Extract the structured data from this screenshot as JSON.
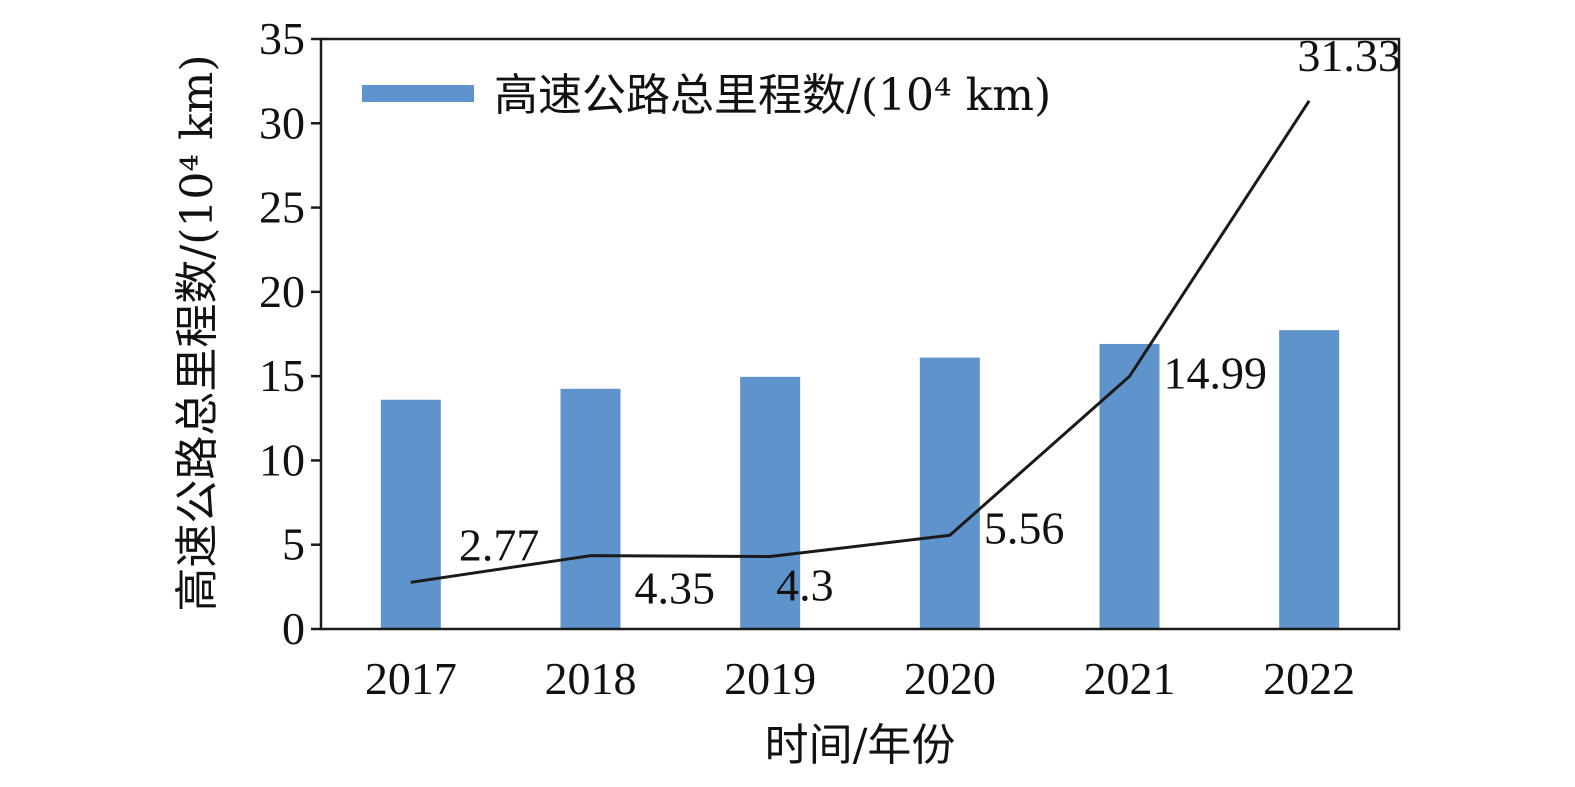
{
  "chart_data": {
    "type": "bar",
    "categories": [
      "2017",
      "2018",
      "2019",
      "2020",
      "2021",
      "2022"
    ],
    "series": [
      {
        "name": "高速公路总里程数/(10⁴ km)",
        "type": "bar",
        "values": [
          13.6,
          14.25,
          14.96,
          16.1,
          16.91,
          17.73
        ],
        "color": "#5f93cb"
      },
      {
        "type": "line",
        "values": [
          2.77,
          4.35,
          4.3,
          5.56,
          14.99,
          31.33
        ],
        "labels": [
          "2.77",
          "4.35",
          "4.3",
          "5.56",
          "14.99",
          "31.33"
        ],
        "color": "#1a1a1a"
      }
    ],
    "xlabel": "时间/年份",
    "ylabel": "高速公路总里程数/(10⁴ km)",
    "ylim": [
      0,
      35
    ],
    "yticks": [
      "0",
      "5",
      "10",
      "15",
      "20",
      "25",
      "30",
      "35"
    ],
    "grid": false,
    "legend": "top-left"
  }
}
